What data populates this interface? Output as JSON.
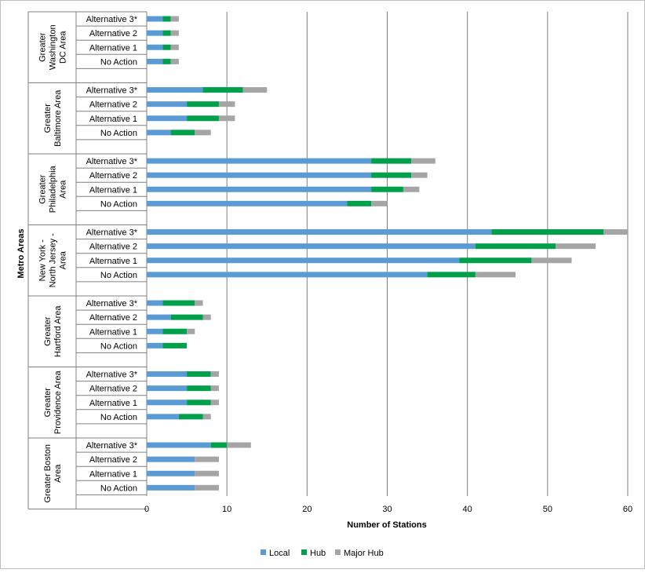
{
  "chart_data": {
    "type": "bar",
    "orientation": "horizontal",
    "stacked": true,
    "xlabel": "Number of Stations",
    "ylabel": "Metro Areas",
    "xlim": [
      0,
      60
    ],
    "xticks": [
      "0",
      "10",
      "20",
      "30",
      "40",
      "50",
      "60"
    ],
    "grid": "vertical",
    "legend": "bottom",
    "series": [
      {
        "name": "Local",
        "color": "#5b9bd5"
      },
      {
        "name": "Hub",
        "color": "#00a04b"
      },
      {
        "name": "Major Hub",
        "color": "#a5a5a5"
      }
    ],
    "groups": [
      {
        "name": "Greater Washington DC Area",
        "label_lines": [
          "Greater",
          "Washington",
          "DC Area"
        ],
        "rows": [
          {
            "label": "Alternative 3*",
            "values": [
              2,
              1,
              1
            ]
          },
          {
            "label": "Alternative 2",
            "values": [
              2,
              1,
              1
            ]
          },
          {
            "label": "Alternative 1",
            "values": [
              2,
              1,
              1
            ]
          },
          {
            "label": "No Action",
            "values": [
              2,
              1,
              1
            ]
          }
        ]
      },
      {
        "name": "Greater Baltimore Area",
        "label_lines": [
          "Greater",
          "Baltimore Area"
        ],
        "rows": [
          {
            "label": "Alternative 3*",
            "values": [
              7,
              5,
              3
            ]
          },
          {
            "label": "Alternative 2",
            "values": [
              5,
              4,
              2
            ]
          },
          {
            "label": "Alternative 1",
            "values": [
              5,
              4,
              2
            ]
          },
          {
            "label": "No Action",
            "values": [
              3,
              3,
              2
            ]
          }
        ]
      },
      {
        "name": "Greater Philadelphia Area",
        "label_lines": [
          "Greater",
          "Philadelphia",
          "Area"
        ],
        "rows": [
          {
            "label": "Alternative 3*",
            "values": [
              28,
              5,
              3
            ]
          },
          {
            "label": "Alternative 2",
            "values": [
              28,
              5,
              2
            ]
          },
          {
            "label": "Alternative 1",
            "values": [
              28,
              4,
              2
            ]
          },
          {
            "label": "No Action",
            "values": [
              25,
              3,
              2
            ]
          }
        ]
      },
      {
        "name": "New York - North Jersey - Area",
        "label_lines": [
          "New York -",
          "North Jersey -",
          "Area"
        ],
        "rows": [
          {
            "label": "Alternative 3*",
            "values": [
              43,
              14,
              3
            ]
          },
          {
            "label": "Alternative 2",
            "values": [
              41,
              10,
              5
            ]
          },
          {
            "label": "Alternative 1",
            "values": [
              39,
              9,
              5
            ]
          },
          {
            "label": "No Action",
            "values": [
              35,
              6,
              5
            ]
          }
        ]
      },
      {
        "name": "Greater Hartford Area",
        "label_lines": [
          "Greater",
          "Hartford Area"
        ],
        "rows": [
          {
            "label": "Alternative 3*",
            "values": [
              2,
              4,
              1
            ]
          },
          {
            "label": "Alternative 2",
            "values": [
              3,
              4,
              1
            ]
          },
          {
            "label": "Alternative 1",
            "values": [
              2,
              3,
              1
            ]
          },
          {
            "label": "No Action",
            "values": [
              2,
              3,
              0
            ]
          }
        ]
      },
      {
        "name": "Greater Providence Area",
        "label_lines": [
          "Greater",
          "Providence Area"
        ],
        "rows": [
          {
            "label": "Alternative 3*",
            "values": [
              5,
              3,
              1
            ]
          },
          {
            "label": "Alternative 2",
            "values": [
              5,
              3,
              1
            ]
          },
          {
            "label": "Alternative 1",
            "values": [
              5,
              3,
              1
            ]
          },
          {
            "label": "No Action",
            "values": [
              4,
              3,
              1
            ]
          }
        ]
      },
      {
        "name": "Greater Boston Area",
        "label_lines": [
          "Greater Boston",
          "Area"
        ],
        "rows": [
          {
            "label": "Alternative 3*",
            "values": [
              8,
              2,
              3
            ]
          },
          {
            "label": "Alternative 2",
            "values": [
              6,
              0,
              3
            ]
          },
          {
            "label": "Alternative 1",
            "values": [
              6,
              0,
              3
            ]
          },
          {
            "label": "No Action",
            "values": [
              6,
              0,
              3
            ]
          }
        ]
      }
    ]
  }
}
